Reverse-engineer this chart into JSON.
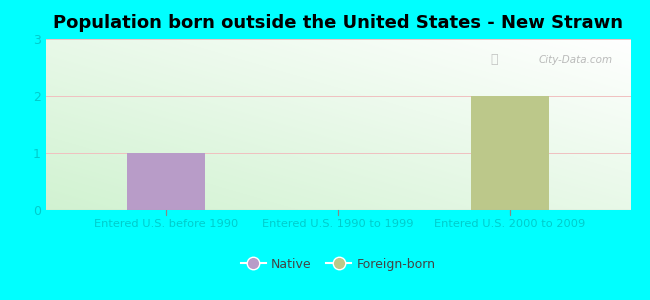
{
  "title": "Population born outside the United States - New Strawn",
  "background_color": "#00ffff",
  "categories": [
    "Entered U.S. before 1990",
    "Entered U.S. 1990 to 1999",
    "Entered U.S. 2000 to 2009"
  ],
  "native_values": [
    1.0,
    0,
    0
  ],
  "foreign_values": [
    0,
    0,
    2.0
  ],
  "native_color": "#b89cc8",
  "foreign_color": "#bcc88a",
  "ylim": [
    0,
    3
  ],
  "yticks": [
    0,
    1,
    2,
    3
  ],
  "title_fontsize": 13,
  "tick_label_color": "#00cccc",
  "bar_width": 0.45,
  "watermark": "City-Data.com",
  "legend_native": "Native",
  "legend_foreign": "Foreign-born"
}
